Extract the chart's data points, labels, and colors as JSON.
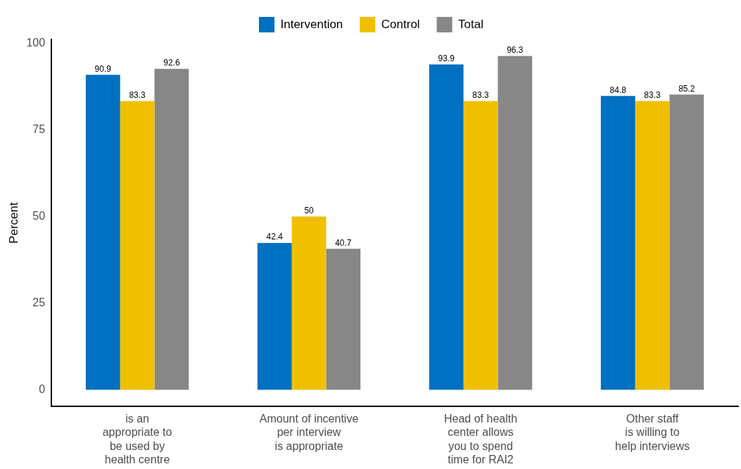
{
  "chart_data": {
    "type": "bar",
    "ylabel": "Percent",
    "categories": [
      "is an\nappropriate to\nbe used by\nhealth centre",
      "Amount of incentive\nper interview\nis appropriate",
      "Head of health\ncenter allows\nyou to spend\ntime for RAI2",
      "Other staff\nis willing to\nhelp interviews"
    ],
    "series": [
      {
        "name": "Intervention",
        "color": "#0070c0",
        "values": [
          90.9,
          42.4,
          93.9,
          84.8
        ]
      },
      {
        "name": "Control",
        "color": "#f0c000",
        "values": [
          83.3,
          50,
          83.3,
          83.3
        ]
      },
      {
        "name": "Total",
        "color": "#878787",
        "values": [
          92.6,
          40.7,
          96.3,
          85.2
        ]
      }
    ],
    "ylim": [
      -4.8,
      101.1
    ],
    "yticks": [
      0,
      25,
      50,
      75,
      100
    ],
    "grid": false,
    "legend": "top",
    "data_labels": true
  }
}
